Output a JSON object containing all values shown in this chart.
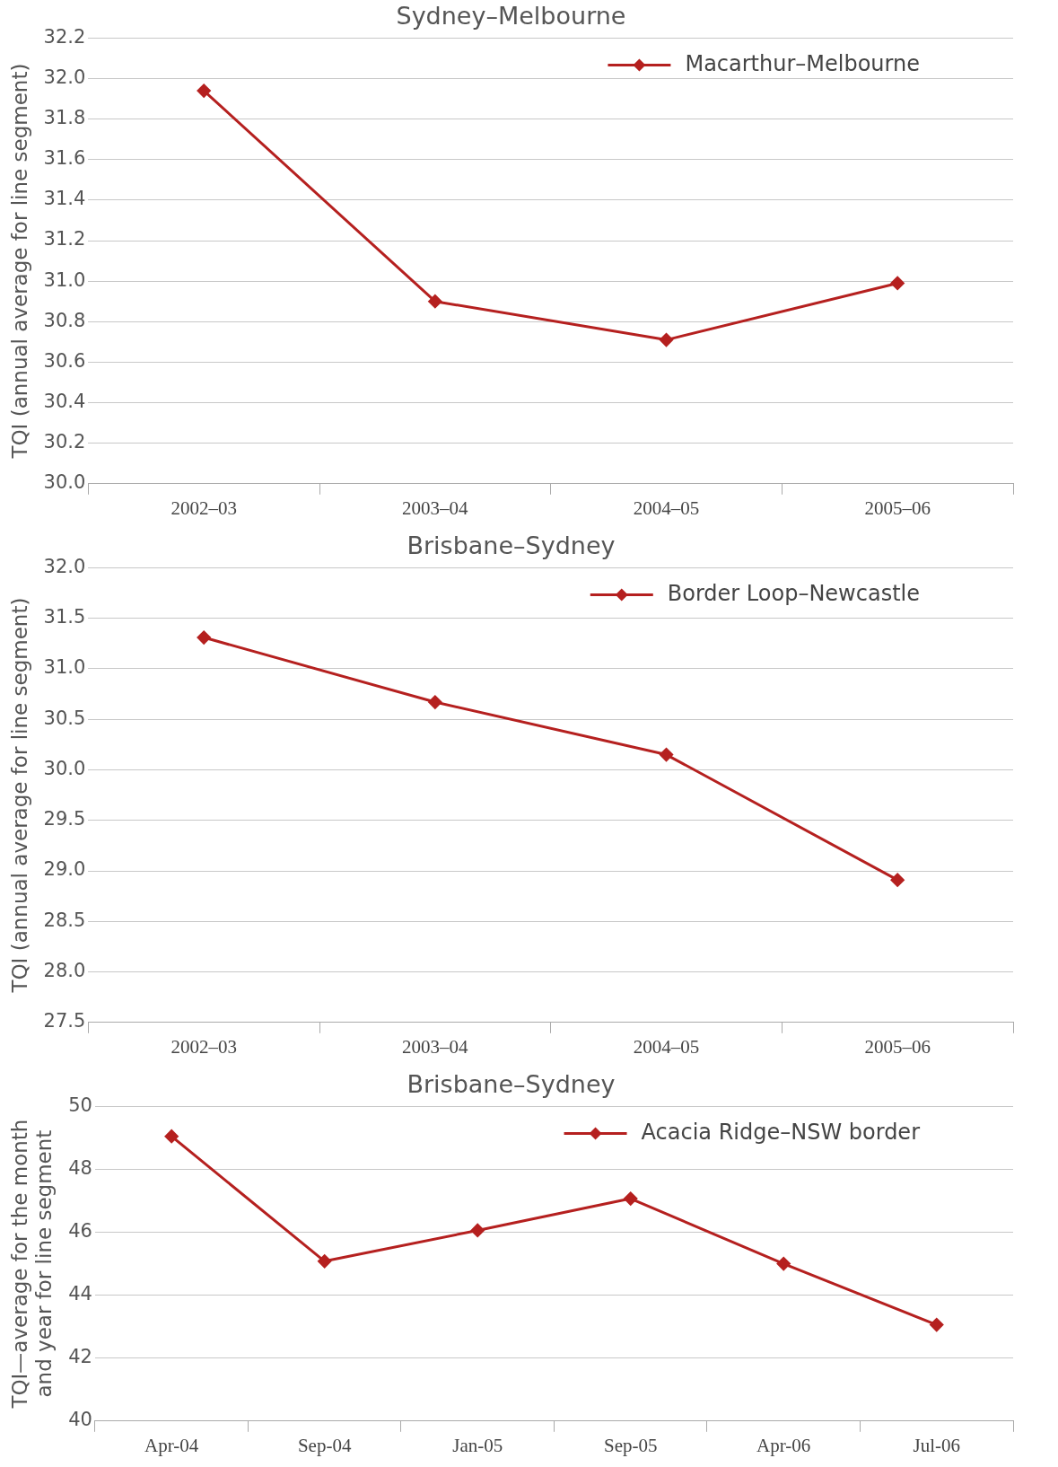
{
  "chart_data": [
    {
      "type": "line",
      "title": "Sydney–Melbourne",
      "ylabel": "TQI (annual average for line segment)",
      "categories": [
        "2002–03",
        "2003–04",
        "2004–05",
        "2005–06"
      ],
      "series": [
        {
          "name": "Macarthur–Melbourne",
          "color": "#b5201f",
          "values": [
            31.94,
            30.9,
            30.71,
            30.99
          ]
        }
      ],
      "ylim": [
        30.0,
        32.2
      ],
      "yticks": [
        {
          "value": 30.0,
          "label": "30.0"
        },
        {
          "value": 30.2,
          "label": "30.2"
        },
        {
          "value": 30.4,
          "label": "30.4"
        },
        {
          "value": 30.6,
          "label": "30.6"
        },
        {
          "value": 30.8,
          "label": "30.8"
        },
        {
          "value": 31.0,
          "label": "31.0"
        },
        {
          "value": 31.2,
          "label": "31.2"
        },
        {
          "value": 31.4,
          "label": "31.4"
        },
        {
          "value": 31.6,
          "label": "31.6"
        },
        {
          "value": 31.8,
          "label": "31.8"
        },
        {
          "value": 32.0,
          "label": "32.0"
        },
        {
          "value": 32.2,
          "label": "32.2"
        }
      ],
      "grid": "y",
      "legend": "top right",
      "marker": "diamond",
      "line_style": "solid"
    },
    {
      "type": "line",
      "title": "Brisbane–Sydney",
      "ylabel": "TQI (annual average for line segment)",
      "categories": [
        "2002–03",
        "2003–04",
        "2004–05",
        "2005–06"
      ],
      "series": [
        {
          "name": "Border Loop–Newcastle",
          "color": "#b5201f",
          "values": [
            31.31,
            30.67,
            30.15,
            28.91
          ]
        }
      ],
      "ylim": [
        27.5,
        32.0
      ],
      "yticks": [
        27.5,
        {
          "value": 28.0,
          "label": "28.0"
        },
        28.5,
        {
          "value": 29.0,
          "label": "29.0"
        },
        29.5,
        {
          "value": 30.0,
          "label": "30.0"
        },
        30.5,
        {
          "value": 31.0,
          "label": "31.0"
        },
        31.5,
        {
          "value": 32.0,
          "label": "32.0"
        }
      ],
      "grid": "y",
      "legend": "top right",
      "marker": "diamond",
      "line_style": "solid"
    },
    {
      "type": "line",
      "title": "Brisbane–Sydney",
      "ylabel": "TQI—average for the month and year for line segment",
      "categories": [
        "Apr-04",
        "Sep-04",
        "Jan-05",
        "Sep-05",
        "Apr-06",
        "Jul-06"
      ],
      "series": [
        {
          "name": "Acacia Ridge–NSW border",
          "color": "#b5201f",
          "values": [
            49.05,
            45.08,
            46.06,
            47.07,
            45.0,
            43.06
          ]
        }
      ],
      "ylim": [
        40,
        50
      ],
      "yticks": [
        40,
        42,
        44,
        46,
        48,
        50
      ],
      "grid": "y",
      "legend": "top right",
      "marker": "diamond",
      "line_style": "solid"
    }
  ]
}
